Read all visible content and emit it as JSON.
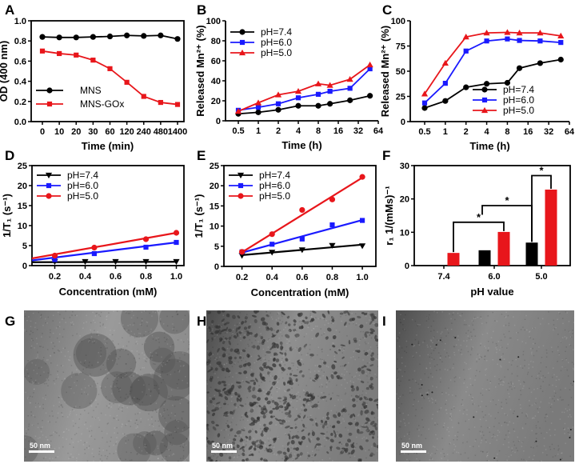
{
  "colors": {
    "black": "#000000",
    "blue": "#1a1aff",
    "red": "#e8161b"
  },
  "chart_data": [
    {
      "panel": "A",
      "type": "line",
      "categories": [
        "0",
        "10",
        "20",
        "30",
        "60",
        "120",
        "240",
        "480",
        "1400"
      ],
      "xlabel": "Time (min)",
      "ylabel": "OD (400 nm)",
      "ylim": [
        0,
        1.0
      ],
      "yticks": [
        "0.0",
        "0.2",
        "0.4",
        "0.6",
        "0.8",
        "1.0"
      ],
      "legend": "bottom-left",
      "series": [
        {
          "name": "MNS",
          "color": "#000000",
          "marker": "circle",
          "values": [
            0.84,
            0.835,
            0.835,
            0.84,
            0.845,
            0.855,
            0.85,
            0.855,
            0.82
          ]
        },
        {
          "name": "MNS-GOx",
          "color": "#e8161b",
          "marker": "square",
          "values": [
            0.7,
            0.675,
            0.66,
            0.61,
            0.525,
            0.39,
            0.25,
            0.19,
            0.17
          ]
        }
      ]
    },
    {
      "panel": "B",
      "type": "line",
      "xscale": "log2",
      "x": [
        0.5,
        1,
        2,
        4,
        8,
        12,
        24,
        48
      ],
      "xticks": [
        "0.5",
        "1",
        "2",
        "4",
        "8",
        "16",
        "32",
        "64"
      ],
      "xlabel": "Time (h)",
      "ylabel": "Released Mn²⁺ (%)",
      "ylim": [
        0,
        100
      ],
      "yticks": [
        "0",
        "20",
        "40",
        "60",
        "80",
        "100"
      ],
      "legend": "top-left",
      "series": [
        {
          "name": "pH=7.4",
          "color": "#000000",
          "marker": "circle",
          "values": [
            7,
            8.5,
            11,
            15,
            15,
            17,
            20.5,
            25
          ]
        },
        {
          "name": "pH=6.0",
          "color": "#1a1aff",
          "marker": "square",
          "values": [
            10.5,
            13.5,
            17,
            23,
            26.5,
            29.5,
            32.5,
            52
          ]
        },
        {
          "name": "pH=5.0",
          "color": "#e8161b",
          "marker": "triangle-up",
          "values": [
            9.5,
            18,
            26,
            29.5,
            37,
            35.5,
            41.5,
            56
          ]
        }
      ]
    },
    {
      "panel": "C",
      "type": "line",
      "xscale": "log2",
      "x": [
        0.5,
        1,
        2,
        4,
        8,
        12,
        24,
        48
      ],
      "xticks": [
        "0.5",
        "1",
        "2",
        "4",
        "8",
        "16",
        "32",
        "64"
      ],
      "xlabel": "Time (h)",
      "ylabel": "Released Mn²⁺ (%)",
      "ylim": [
        0,
        100
      ],
      "yticks": [
        "0",
        "25",
        "50",
        "75",
        "100"
      ],
      "legend": "bottom-right",
      "series": [
        {
          "name": "pH=7.4",
          "color": "#000000",
          "marker": "circle",
          "values": [
            13.5,
            20.5,
            34,
            37.5,
            38.5,
            53,
            58,
            61.5
          ]
        },
        {
          "name": "pH=6.0",
          "color": "#1a1aff",
          "marker": "square",
          "values": [
            18.5,
            38,
            70,
            80,
            82,
            80.5,
            80,
            78.5
          ]
        },
        {
          "name": "pH=5.0",
          "color": "#e8161b",
          "marker": "triangle-up",
          "values": [
            27.5,
            58,
            84,
            88,
            88.5,
            88,
            88,
            85
          ]
        }
      ]
    },
    {
      "panel": "D",
      "type": "scatter",
      "xlabel": "Concentration (mM)",
      "ylabel": "1/T₁ (s⁻¹)",
      "xlim": [
        0.05,
        1.05
      ],
      "xticks": [
        "0.2",
        "0.4",
        "0.6",
        "0.8",
        "1.0"
      ],
      "ylim": [
        0,
        25
      ],
      "yticks": [
        "0",
        "5",
        "10",
        "15",
        "20",
        "25"
      ],
      "legend": "top-left",
      "series": [
        {
          "name": "pH=7.4",
          "color": "#000000",
          "marker": "triangle-down",
          "x": [
            0.2,
            0.4,
            0.6,
            0.8,
            1.0
          ],
          "values": [
            1.0,
            1.0,
            1.0,
            1.0,
            1.0
          ],
          "fit": {
            "slope": 0.1,
            "intercept": 0.85
          }
        },
        {
          "name": "pH=6.0",
          "color": "#1a1aff",
          "marker": "square",
          "x": [
            0.2,
            0.46,
            0.8,
            1.0
          ],
          "values": [
            1.5,
            3.0,
            4.6,
            5.8
          ],
          "fit": {
            "slope": 4.74,
            "intercept": 1.06
          }
        },
        {
          "name": "pH=5.0",
          "color": "#e8161b",
          "marker": "circle",
          "x": [
            0.2,
            0.46,
            0.8,
            1.0
          ],
          "values": [
            2.5,
            4.5,
            6.6,
            8.2
          ],
          "fit": {
            "slope": 6.74,
            "intercept": 1.46
          }
        }
      ]
    },
    {
      "panel": "E",
      "type": "scatter",
      "xlabel": "Concentration (mM)",
      "ylabel": "1/T₁ (s⁻¹)",
      "xlim": [
        0.08,
        1.09
      ],
      "xticks": [
        "0.2",
        "0.4",
        "0.6",
        "0.8",
        "1.0"
      ],
      "ylim": [
        0,
        25
      ],
      "yticks": [
        "0",
        "5",
        "10",
        "15",
        "20",
        "25"
      ],
      "legend": "top-left",
      "series": [
        {
          "name": "pH=7.4",
          "color": "#000000",
          "marker": "triangle-down",
          "x": [
            0.2,
            0.4,
            0.6,
            0.8,
            1.0
          ],
          "values": [
            2.7,
            3.5,
            4.1,
            5.2,
            5.1
          ],
          "fit": {
            "slope": 3.25,
            "intercept": 2.15
          }
        },
        {
          "name": "pH=6.0",
          "color": "#1a1aff",
          "marker": "square",
          "x": [
            0.2,
            0.4,
            0.6,
            0.8,
            1.0
          ],
          "values": [
            3.6,
            5.5,
            6.8,
            10.3,
            11.4
          ],
          "fit": {
            "slope": 10.1,
            "intercept": 1.4
          }
        },
        {
          "name": "pH=5.0",
          "color": "#e8161b",
          "marker": "circle",
          "x": [
            0.2,
            0.4,
            0.6,
            0.8,
            1.0
          ],
          "values": [
            3.6,
            8.0,
            14.0,
            16.6,
            22.2
          ],
          "fit": {
            "slope": 23.1,
            "intercept": -1.1
          }
        }
      ]
    },
    {
      "panel": "F",
      "type": "bar",
      "categories": [
        "7.4",
        "6.0",
        "5.0"
      ],
      "xlabel": "pH value",
      "ylabel": "r₁ 1/(mMs)⁻¹",
      "ylim": [
        0,
        30
      ],
      "yticks": [
        "0",
        "10",
        "20",
        "30"
      ],
      "series": [
        {
          "color": "#000000",
          "values": [
            0,
            4.6,
            6.9
          ]
        },
        {
          "color": "#e8161b",
          "values": [
            3.8,
            10.1,
            22.8
          ]
        }
      ],
      "annotations": [
        {
          "text": "*",
          "from": {
            "category": 0,
            "series": 1
          },
          "to": {
            "category": 1,
            "series": 1
          },
          "level": 13
        },
        {
          "text": "*",
          "from": {
            "category": 1,
            "series": -1
          },
          "to": {
            "category": 2,
            "series": 0
          },
          "level": 18
        },
        {
          "text": "*",
          "from": {
            "category": 2,
            "series": 0
          },
          "to": {
            "category": 2,
            "series": 1
          },
          "level": 27
        }
      ]
    }
  ],
  "micrographs": [
    {
      "panel": "G",
      "scale_bar": "50 nm",
      "content": "large-dark-particles"
    },
    {
      "panel": "H",
      "scale_bar": "50 nm",
      "content": "fragmented-particles"
    },
    {
      "panel": "I",
      "scale_bar": "50 nm",
      "content": "dissolved"
    }
  ]
}
